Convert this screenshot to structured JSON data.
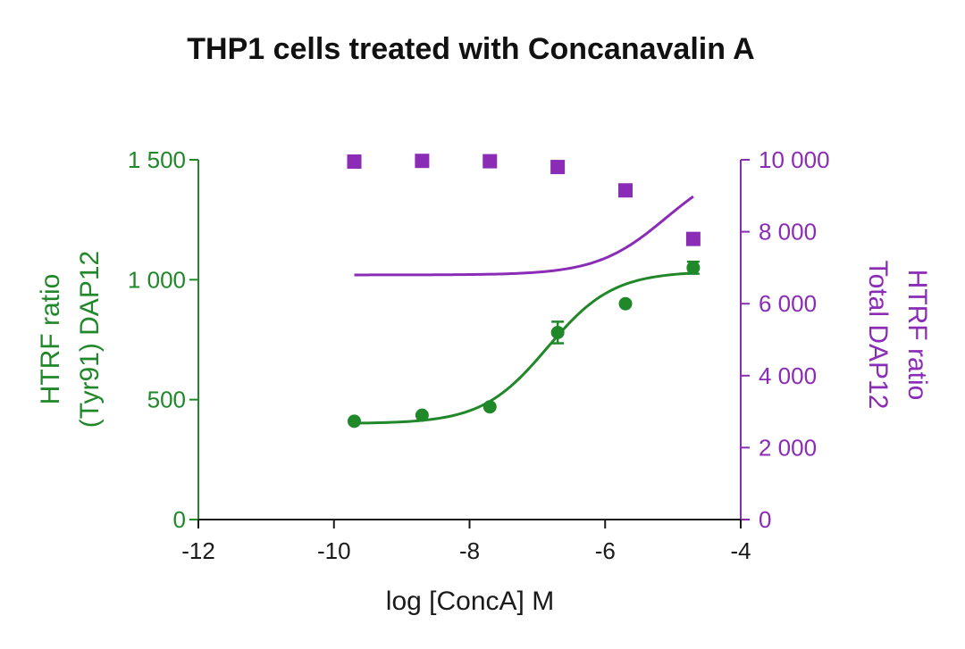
{
  "chart_data": {
    "type": "scatter",
    "title": "THP1 cells treated with Concanavalin A",
    "xlabel": "log [ConcA] M",
    "xlim": [
      -12,
      -4
    ],
    "x_ticks": [
      -12,
      -10,
      -8,
      -6,
      -4
    ],
    "x_tick_labels": [
      "-12",
      "-10",
      "-8",
      "-6",
      "-4"
    ],
    "y_left": {
      "label_lines": [
        "HTRF ratio",
        "(Tyr91) DAP12"
      ],
      "lim": [
        0,
        1500
      ],
      "ticks": [
        0,
        500,
        1000,
        1500
      ],
      "tick_labels": [
        "0",
        "500",
        "1 000",
        "1 500"
      ],
      "color": "#21882a"
    },
    "y_right": {
      "label_lines": [
        "HTRF ratio",
        "Total DAP12"
      ],
      "lim": [
        0,
        10000
      ],
      "ticks": [
        0,
        2000,
        4000,
        6000,
        8000,
        10000
      ],
      "tick_labels": [
        "0",
        "2 000",
        "4 000",
        "6 000",
        "8 000",
        "10 000"
      ],
      "color": "#8a2cb5"
    },
    "series": [
      {
        "axis": "left",
        "marker": "circle",
        "color": "#21882a",
        "x": [
          -9.7,
          -8.7,
          -7.7,
          -6.7,
          -5.7,
          -4.7
        ],
        "y": [
          410,
          435,
          470,
          780,
          900,
          1050
        ],
        "error": [
          8,
          8,
          8,
          45,
          8,
          25
        ],
        "fit": {
          "model": "4PL",
          "bottom": 400,
          "top": 1035,
          "logEC50": -6.85,
          "hill": 0.9
        }
      },
      {
        "axis": "right",
        "marker": "square",
        "color": "#8a2cb5",
        "x": [
          -9.7,
          -8.7,
          -7.7,
          -6.7,
          -5.7,
          -4.7
        ],
        "y": [
          9950,
          9970,
          9960,
          9800,
          9150,
          7800
        ],
        "fit": {
          "model": "4PL",
          "bottom": 6800,
          "top": 9975,
          "logEC50": -5.1,
          "hill": 0.85
        }
      }
    ]
  }
}
